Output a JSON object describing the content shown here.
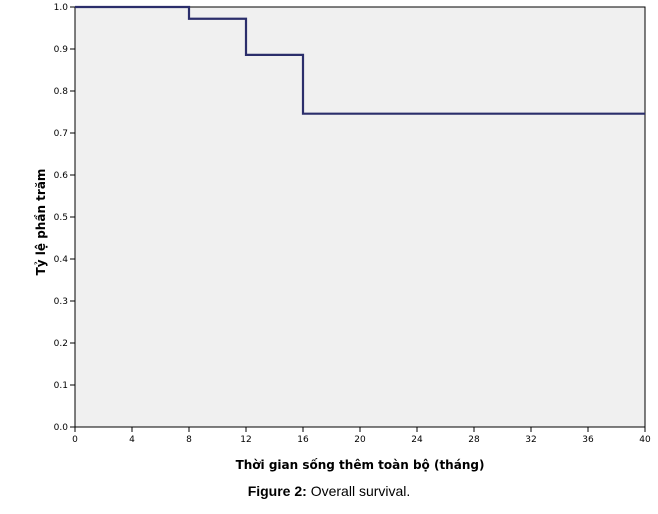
{
  "chart_data": {
    "type": "line",
    "step": true,
    "xlabel": "Thời gian sống thêm toàn bộ (tháng)",
    "ylabel": "Tỷ lệ phần trăm",
    "xlim": [
      0,
      40
    ],
    "ylim": [
      0.0,
      1.0
    ],
    "xticks": [
      "0",
      "4",
      "8",
      "12",
      "16",
      "20",
      "24",
      "28",
      "32",
      "36",
      "40"
    ],
    "yticks": [
      "0.0",
      "0.1",
      "0.2",
      "0.3",
      "0.4",
      "0.5",
      "0.6",
      "0.7",
      "0.8",
      "0.9",
      "1.0"
    ],
    "grid": false,
    "series": [
      {
        "x": [
          0,
          8,
          12,
          16,
          40
        ],
        "y": [
          1.0,
          0.972,
          0.886,
          0.746,
          0.746
        ]
      }
    ],
    "colors": {
      "plot_background": "#f0f0f0",
      "line": "#2b2e6b"
    }
  },
  "caption": {
    "label": "Figure 2:",
    "text": "Overall survival."
  }
}
